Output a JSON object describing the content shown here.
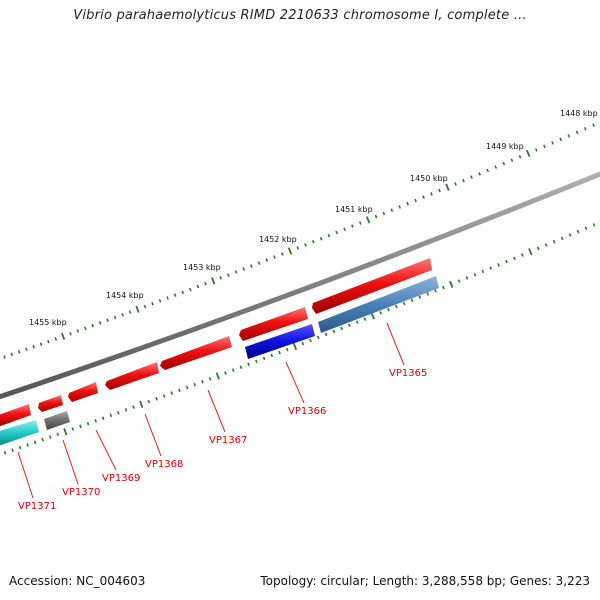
{
  "title": "Vibrio parahaemolyticus RIMD 2210633 chromosome I, complete ...",
  "footer": {
    "accession": "Accession: NC_004603",
    "summary": "Topology: circular; Length: 3,288,558 bp; Genes: 3,223"
  },
  "ruler": {
    "ticks": [
      "1448 kbp",
      "1449 kbp",
      "1450 kbp",
      "1451 kbp",
      "1452 kbp",
      "1453 kbp",
      "1454 kbp",
      "1455 kbp"
    ]
  },
  "genes": [
    {
      "id": "VP1365",
      "label": "VP1365"
    },
    {
      "id": "VP1366",
      "label": "VP1366"
    },
    {
      "id": "VP1367",
      "label": "VP1367"
    },
    {
      "id": "VP1368",
      "label": "VP1368"
    },
    {
      "id": "VP1369",
      "label": "VP1369"
    },
    {
      "id": "VP1370",
      "label": "VP1370"
    },
    {
      "id": "VP1371",
      "label": "VP1371"
    }
  ],
  "colors": {
    "forward_gene": "#ee1111",
    "label": "#dd0000",
    "backbone": "#808080",
    "ruler": "#2a7a2a",
    "blue": "#1010dd",
    "steelblue": "#4a80b8",
    "gray": "#6e6e6e",
    "cyan": "#22c8c8"
  }
}
